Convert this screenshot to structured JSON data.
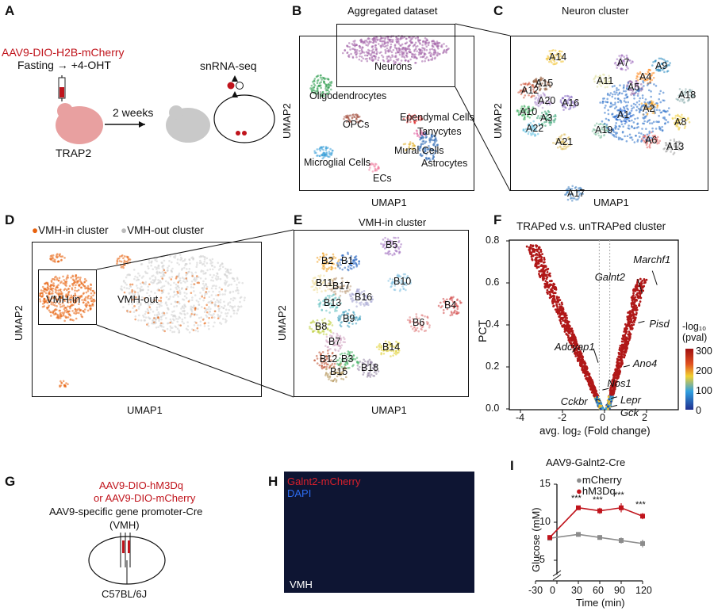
{
  "panels": {
    "A": {
      "label": "A",
      "virus": "AAV9-DIO-H2B-mCherry",
      "protocol": "Fasting → +4-OHT",
      "interval": "2 weeks",
      "mouse": "TRAP2",
      "readout": "snRNA-seq"
    },
    "B": {
      "label": "B",
      "title": "Aggregated dataset",
      "xlabel": "UMAP1",
      "ylabel": "UMAP2",
      "clusters": [
        "Neurons",
        "Oligodendrocytes",
        "OPCs",
        "Ependymal Cells",
        "Tanycytes",
        "Mural Cells",
        "Microglial Cells",
        "Astrocytes",
        "ECs"
      ]
    },
    "C": {
      "label": "C",
      "title": "Neuron cluster",
      "xlabel": "UMAP1",
      "ylabel": "UMAP2",
      "clusters": [
        "A14",
        "A7",
        "A9",
        "A11",
        "A4",
        "A15",
        "A5",
        "A12",
        "A18",
        "A20",
        "A16",
        "A2",
        "A10",
        "A1",
        "A3",
        "A8",
        "A22",
        "A19",
        "A21",
        "A6",
        "A13",
        "A17"
      ]
    },
    "D": {
      "label": "D",
      "legend": [
        "VMH-in cluster",
        "VMH-out cluster"
      ],
      "colors": [
        "#e8620f",
        "#c8c8c8"
      ],
      "inset": "VMH-in",
      "out": "VMH-out",
      "xlabel": "UMAP1",
      "ylabel": "UMAP2"
    },
    "E": {
      "label": "E",
      "title": "VMH-in cluster",
      "xlabel": "UMAP1",
      "ylabel": "UMAP2",
      "clusters": [
        "B5",
        "B2",
        "B1",
        "B10",
        "B11",
        "B17",
        "B16",
        "B13",
        "B9",
        "B4",
        "B6",
        "B8",
        "B7",
        "B14",
        "B12",
        "B3",
        "B15",
        "B18"
      ]
    },
    "G": {
      "label": "G",
      "line1": "AAV9-DIO-hM3Dq",
      "line2": "or AAV9-DIO-mCherry",
      "line3": "AAV9-specific gene promoter-Cre",
      "site": "(VMH)",
      "strain": "C57BL/6J"
    },
    "H": {
      "label": "H",
      "stain1": "Galnt2-mCherry",
      "stain2": "DAPI",
      "region": "VMH"
    }
  },
  "chart_data": [
    {
      "panel": "F",
      "label": "F",
      "type": "scatter",
      "title": "TRAPed v.s. unTRAPed cluster",
      "xlabel": "avg. log₂ (Fold change)",
      "ylabel": "PCT",
      "xlim": [
        -4.4,
        3.4
      ],
      "ylim": [
        0,
        0.8
      ],
      "xticks": [
        "-4",
        "-2",
        "0",
        "2"
      ],
      "yticks": [
        "0.0",
        "0.2",
        "0.4",
        "0.6",
        "0.8"
      ],
      "colorbar": {
        "title": "-log₁₀ (pval)",
        "ticks": [
          "300",
          "200",
          "100",
          "0"
        ],
        "range": [
          0,
          300
        ]
      },
      "annotations": [
        {
          "gene": "Marchf1",
          "x": 2.5,
          "y": 0.59
        },
        {
          "gene": "Galnt2",
          "x": 1.8,
          "y": 0.55
        },
        {
          "gene": "Pisd",
          "x": 1.6,
          "y": 0.41
        },
        {
          "gene": "Adcyap1",
          "x": -0.3,
          "y": 0.22
        },
        {
          "gene": "Ano4",
          "x": 0.9,
          "y": 0.2
        },
        {
          "gene": "Nos1",
          "x": -0.1,
          "y": 0.09
        },
        {
          "gene": "Lepr",
          "x": 0.3,
          "y": 0.05
        },
        {
          "gene": "Cckbr",
          "x": -0.2,
          "y": 0.04
        },
        {
          "gene": "Gck",
          "x": 0.3,
          "y": 0.01
        }
      ]
    },
    {
      "panel": "I",
      "label": "I",
      "type": "line",
      "title": "AAV9-Galnt2-Cre",
      "xlabel": "Time (min)",
      "ylabel": "Glucose (mM)",
      "xticks": [
        "-30",
        "0",
        "30",
        "60",
        "90",
        "120"
      ],
      "yticks": [
        "5",
        "10",
        "15"
      ],
      "x": [
        -10,
        30,
        60,
        90,
        120
      ],
      "series": [
        {
          "name": "mCherry",
          "color": "#8c8c8c",
          "values": [
            7.9,
            8.4,
            8.0,
            7.6,
            7.2
          ],
          "err": [
            0.3,
            0.3,
            0.3,
            0.4,
            0.5
          ]
        },
        {
          "name": "hM3Dq",
          "color": "#c0141c",
          "values": [
            8.0,
            11.9,
            11.5,
            11.9,
            10.8
          ],
          "err": [
            0.3,
            0.2,
            0.4,
            0.6,
            0.4
          ]
        }
      ],
      "significance": [
        "***",
        "***",
        "***",
        "***"
      ]
    }
  ]
}
